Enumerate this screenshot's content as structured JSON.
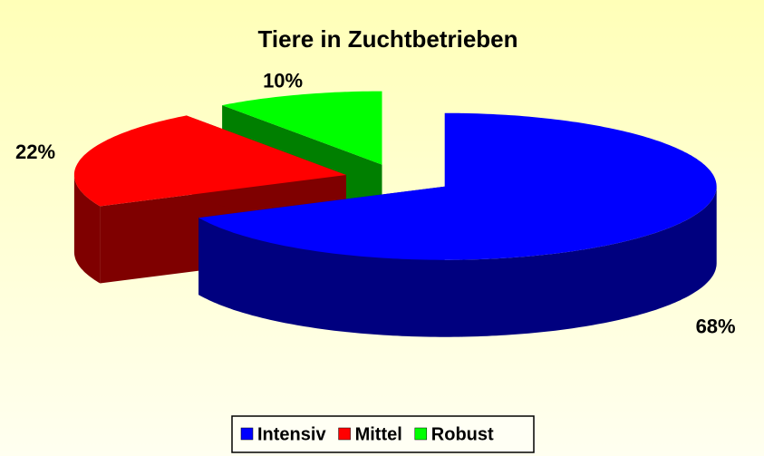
{
  "chart_data": {
    "type": "pie3d",
    "title": "Tiere in Zuchtbetrieben",
    "categories": [
      "Intensiv",
      "Mittel",
      "Robust"
    ],
    "values": [
      68,
      22,
      10
    ],
    "value_labels": [
      "68%",
      "22%",
      "10%"
    ],
    "colors": [
      "#0000ff",
      "#ff0000",
      "#00ff00"
    ],
    "legend": "bottom"
  }
}
